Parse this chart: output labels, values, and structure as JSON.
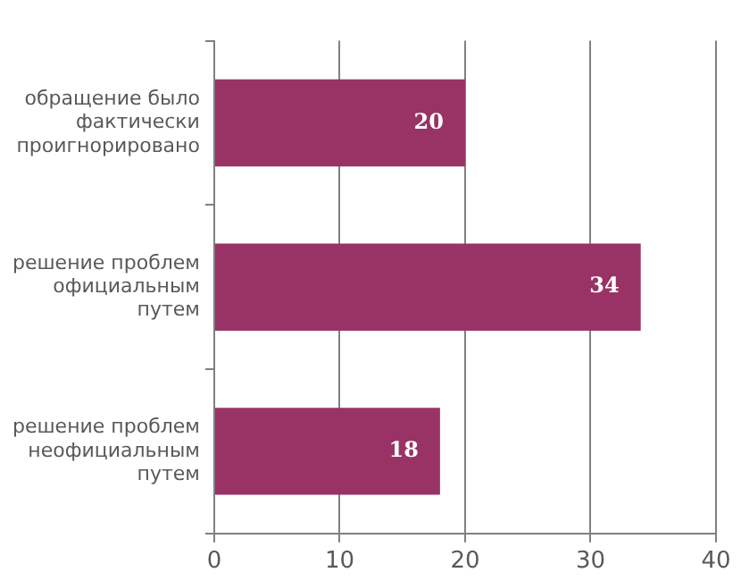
{
  "chart_data": {
    "type": "bar",
    "orientation": "horizontal",
    "categories": [
      "обращение было фактически проигнорировано",
      "решение проблем официальным путем",
      "решение проблем неофициальным путем"
    ],
    "values": [
      20,
      34,
      18
    ],
    "color": "#993366",
    "xlim": [
      0,
      40
    ],
    "xticks": [
      0,
      10,
      20,
      30,
      40
    ],
    "grid": "x",
    "data_labels": true
  }
}
